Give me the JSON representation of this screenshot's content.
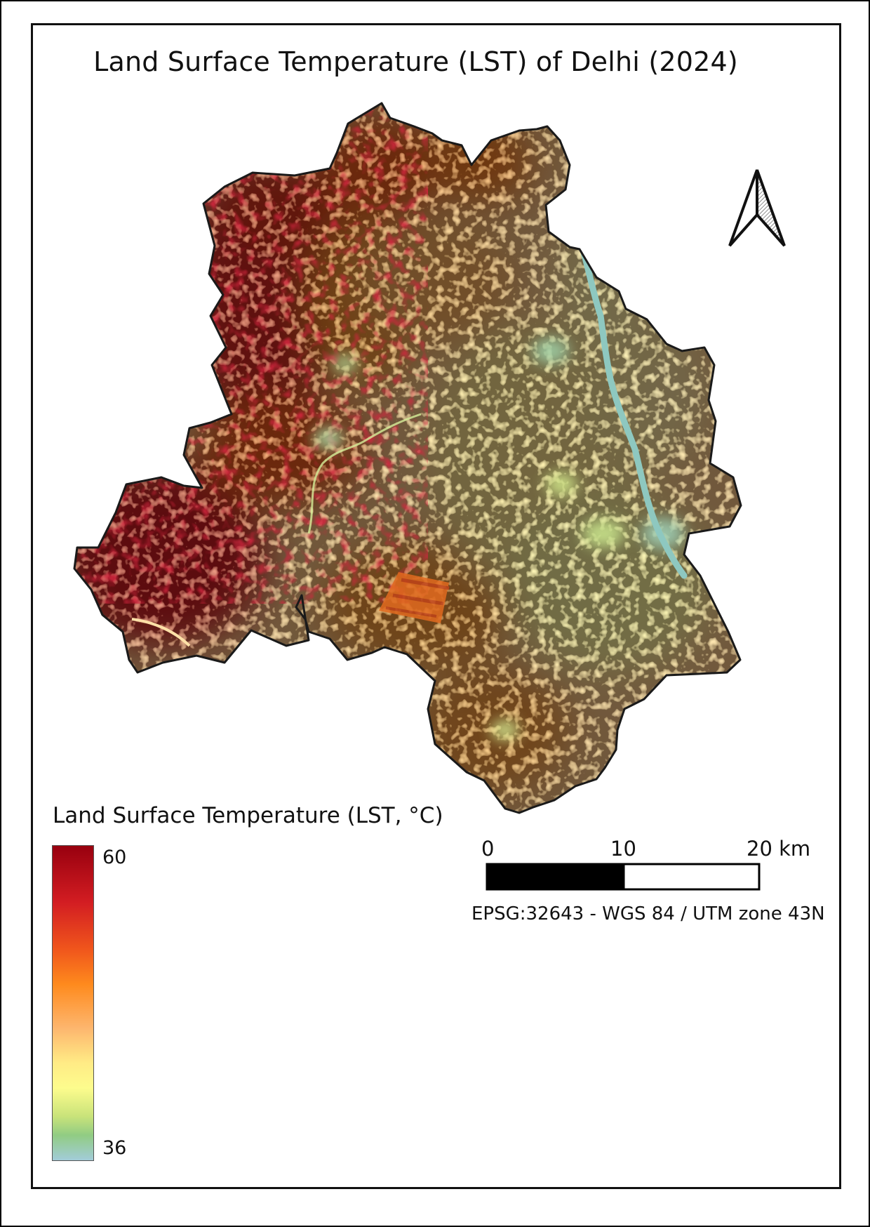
{
  "title": "Land Surface Temperature (LST) of Delhi (2024)",
  "legend": {
    "title": "Land Surface Temperature (LST, °C)",
    "max_label": "60",
    "min_label": "36",
    "max_value": 60,
    "min_value": 36,
    "colors": [
      "#98000f",
      "#d31d22",
      "#fe8a1d",
      "#fdb66e",
      "#fdfc8d",
      "#91cc83",
      "#a2ccd9"
    ]
  },
  "scale_bar": {
    "labels": [
      "0",
      "10",
      "20 km"
    ],
    "fill_colors": [
      "#000000",
      "#ffffff"
    ]
  },
  "crs": "EPSG:32643 - WGS 84 / UTM zone 43N",
  "north_arrow": {
    "icon": "north-arrow-icon"
  },
  "map": {
    "river_color": "#8ec8c0",
    "boundary_color": "#1a1a1a"
  }
}
